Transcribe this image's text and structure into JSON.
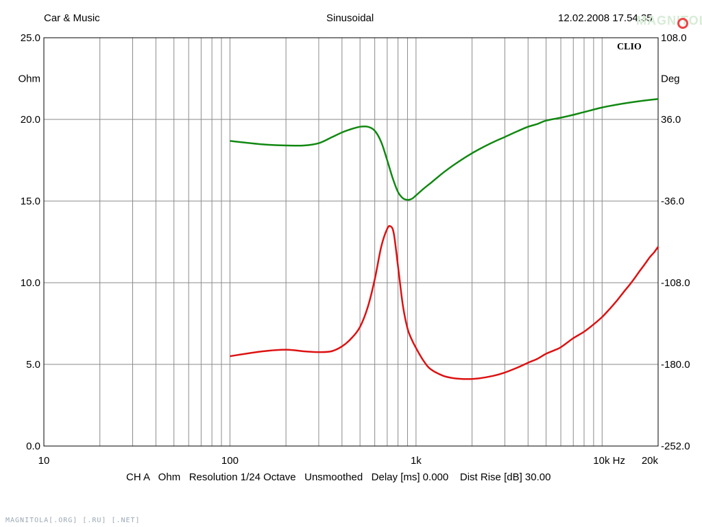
{
  "header": {
    "left": "Car & Music",
    "center": "Sinusoidal",
    "right": "12.02.2008 17.54.35"
  },
  "brand": "CLIO",
  "watermark_top": "MAGNITOLA",
  "watermark_bottom": "MAGNITOLA[.ORG] [.RU] [.NET]",
  "footer": "CH A   Ohm   Resolution 1/24 Octave   Unsmoothed   Delay [ms] 0.000    Dist Rise [dB] 30.00",
  "chart_data": {
    "type": "line",
    "title": "",
    "x_scale": "log",
    "xlim": [
      10,
      20000
    ],
    "x_tick_labels": [
      {
        "value": 10,
        "label": "10"
      },
      {
        "value": 100,
        "label": "100"
      },
      {
        "value": 1000,
        "label": "1k"
      },
      {
        "value": 10000,
        "label": "10k  Hz"
      },
      {
        "value": 20000,
        "label": "20k"
      }
    ],
    "y_left": {
      "label": "Ohm",
      "lim": [
        0,
        25
      ],
      "ticks": [
        "0.0",
        "5.0",
        "10.0",
        "15.0",
        "20.0",
        "25.0"
      ]
    },
    "y_right": {
      "label": "Deg",
      "lim": [
        -252,
        108
      ],
      "ticks": [
        "-252.0",
        "-180.0",
        "-108.0",
        "-36.0",
        "36.0",
        "108.0"
      ]
    },
    "grid": true,
    "colors": {
      "impedance": "#dd1111",
      "phase": "#118811",
      "grid": "#8a8a8a"
    },
    "series": [
      {
        "axis": "left",
        "color": "#dd1111",
        "x": [
          100,
          150,
          200,
          250,
          300,
          350,
          400,
          450,
          500,
          550,
          600,
          650,
          700,
          730,
          760,
          800,
          850,
          900,
          950,
          1000,
          1100,
          1200,
          1400,
          1600,
          1900,
          2200,
          2600,
          3000,
          3500,
          4000,
          4500,
          5000,
          5500,
          6000,
          7000,
          8000,
          9000,
          10000,
          11000,
          12000,
          13000,
          14000,
          15000,
          16000,
          17000,
          18000,
          19000,
          20000
        ],
        "values": [
          5.5,
          5.8,
          5.9,
          5.8,
          5.75,
          5.8,
          6.1,
          6.6,
          7.3,
          8.5,
          10.2,
          12.2,
          13.3,
          13.45,
          13.0,
          11.0,
          8.6,
          7.2,
          6.5,
          6.0,
          5.2,
          4.7,
          4.3,
          4.15,
          4.1,
          4.15,
          4.3,
          4.5,
          4.8,
          5.1,
          5.35,
          5.65,
          5.85,
          6.05,
          6.6,
          7.0,
          7.45,
          7.9,
          8.4,
          8.9,
          9.4,
          9.85,
          10.3,
          10.75,
          11.15,
          11.55,
          11.85,
          12.2
        ]
      },
      {
        "axis": "right",
        "color": "#118811",
        "x": [
          100,
          150,
          200,
          250,
          300,
          350,
          400,
          450,
          500,
          550,
          600,
          650,
          700,
          750,
          800,
          850,
          900,
          950,
          1000,
          1100,
          1200,
          1400,
          1600,
          1900,
          2200,
          2600,
          3000,
          3500,
          4000,
          4500,
          5000,
          6000,
          7000,
          8000,
          10000,
          12000,
          15000,
          20000
        ],
        "values": [
          17,
          14,
          13,
          13,
          15,
          20,
          24.5,
          27.5,
          29.5,
          29.5,
          26,
          16,
          0,
          -16,
          -28,
          -33.5,
          -35,
          -34,
          -31,
          -25,
          -20,
          -11,
          -4,
          4,
          10,
          16,
          20.5,
          25.5,
          29.5,
          32,
          35,
          37.5,
          40,
          42.5,
          46.5,
          49,
          51.5,
          54
        ]
      }
    ]
  }
}
